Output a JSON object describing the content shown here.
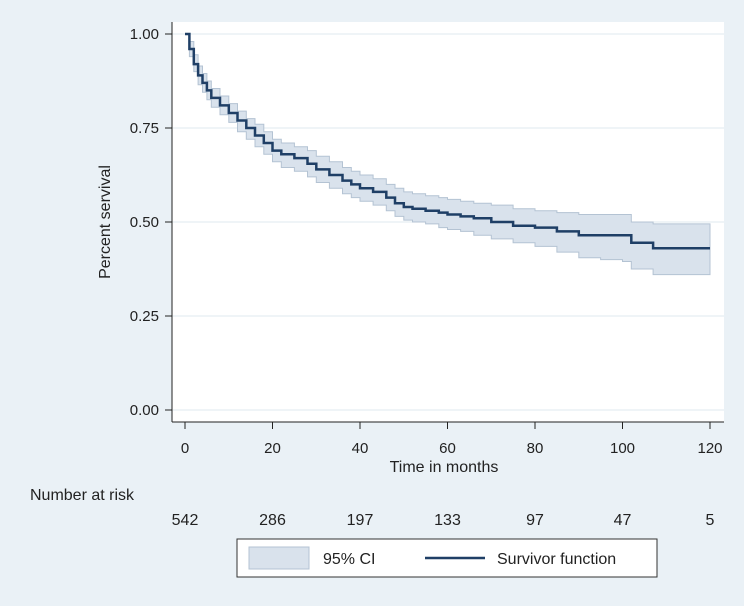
{
  "chart_data": {
    "type": "line",
    "title": "",
    "xlabel": "Time in months",
    "ylabel": "Percent servival",
    "xlim": [
      0,
      120
    ],
    "ylim": [
      0,
      1
    ],
    "x_ticks": [
      0,
      20,
      40,
      60,
      80,
      100,
      120
    ],
    "x_tick_labels": [
      "0",
      "20",
      "40",
      "60",
      "80",
      "100",
      "120"
    ],
    "y_ticks": [
      0,
      0.25,
      0.5,
      0.75,
      1.0
    ],
    "y_tick_labels": [
      "0.00",
      "0.25",
      "0.50",
      "0.75",
      "1.00"
    ],
    "grid": true,
    "series": [
      {
        "name": "Survivor function",
        "style": "step",
        "color": "#1f3f66",
        "x": [
          0,
          1,
          2,
          3,
          4,
          5,
          6,
          8,
          10,
          12,
          14,
          16,
          18,
          20,
          22,
          25,
          28,
          30,
          33,
          36,
          38,
          40,
          43,
          46,
          48,
          50,
          52,
          55,
          58,
          60,
          63,
          66,
          70,
          75,
          80,
          85,
          90,
          95,
          100,
          102,
          107,
          120
        ],
        "y": [
          1.0,
          0.96,
          0.92,
          0.89,
          0.87,
          0.85,
          0.83,
          0.81,
          0.79,
          0.77,
          0.75,
          0.73,
          0.71,
          0.69,
          0.68,
          0.67,
          0.655,
          0.64,
          0.625,
          0.61,
          0.6,
          0.59,
          0.58,
          0.565,
          0.55,
          0.54,
          0.535,
          0.53,
          0.525,
          0.52,
          0.515,
          0.51,
          0.5,
          0.49,
          0.485,
          0.475,
          0.465,
          0.465,
          0.465,
          0.445,
          0.43,
          0.43
        ]
      },
      {
        "name": "95% CI",
        "style": "band",
        "color": "#d9e2ec",
        "x": [
          0,
          1,
          2,
          3,
          4,
          5,
          6,
          8,
          10,
          12,
          14,
          16,
          18,
          20,
          22,
          25,
          28,
          30,
          33,
          36,
          38,
          40,
          43,
          46,
          48,
          50,
          52,
          55,
          58,
          60,
          63,
          66,
          70,
          75,
          80,
          85,
          90,
          95,
          100,
          102,
          107,
          120
        ],
        "lower": [
          1.0,
          0.94,
          0.9,
          0.865,
          0.845,
          0.825,
          0.805,
          0.785,
          0.765,
          0.74,
          0.72,
          0.7,
          0.68,
          0.66,
          0.645,
          0.635,
          0.62,
          0.605,
          0.59,
          0.575,
          0.565,
          0.555,
          0.545,
          0.53,
          0.515,
          0.505,
          0.5,
          0.495,
          0.485,
          0.48,
          0.475,
          0.465,
          0.455,
          0.445,
          0.435,
          0.42,
          0.405,
          0.4,
          0.395,
          0.375,
          0.36,
          0.36
        ],
        "upper": [
          1.0,
          0.98,
          0.945,
          0.915,
          0.895,
          0.875,
          0.855,
          0.835,
          0.815,
          0.795,
          0.775,
          0.76,
          0.74,
          0.72,
          0.71,
          0.7,
          0.69,
          0.675,
          0.66,
          0.645,
          0.635,
          0.625,
          0.615,
          0.6,
          0.59,
          0.58,
          0.575,
          0.57,
          0.565,
          0.56,
          0.555,
          0.55,
          0.545,
          0.535,
          0.53,
          0.525,
          0.52,
          0.52,
          0.52,
          0.5,
          0.495,
          0.495
        ]
      }
    ],
    "risk_table": {
      "title": "Number at risk",
      "x": [
        0,
        20,
        40,
        60,
        80,
        100,
        120
      ],
      "values": [
        "542",
        "286",
        "197",
        "133",
        "97",
        "47",
        "5"
      ]
    },
    "legend": {
      "placement": "bottom",
      "entries": [
        {
          "label": "95% CI",
          "kind": "band"
        },
        {
          "label": "Survivor function",
          "kind": "line"
        }
      ]
    }
  }
}
